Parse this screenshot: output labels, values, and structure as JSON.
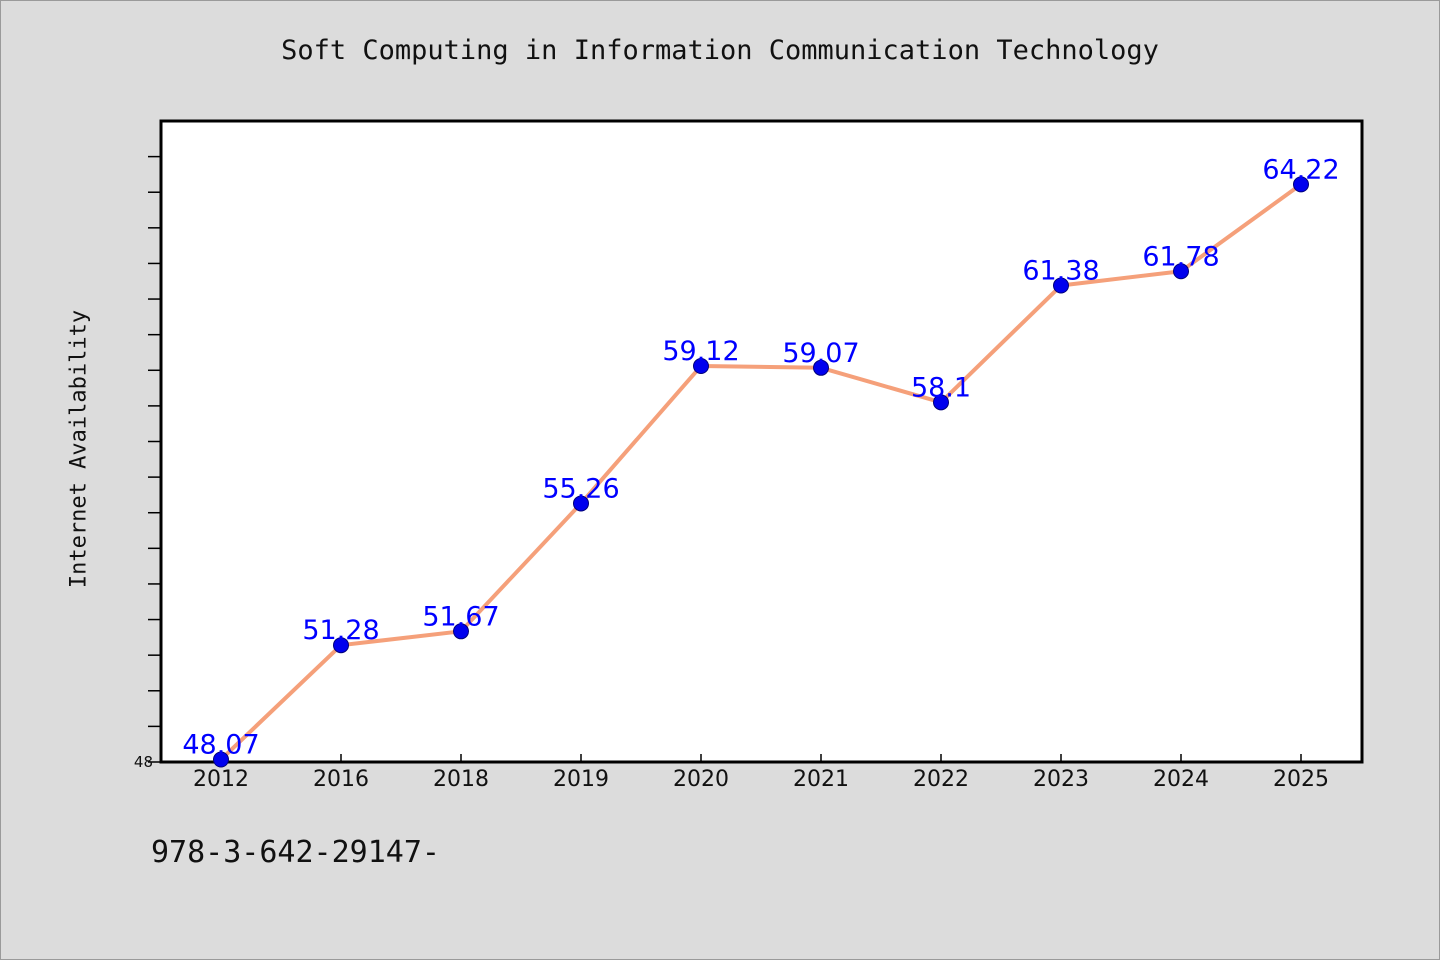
{
  "chart_data": {
    "type": "line",
    "title": "Soft Computing in Information Communication Technology",
    "xlabel": "",
    "ylabel": "Internet Availability",
    "categories": [
      "2012",
      "2016",
      "2018",
      "2019",
      "2020",
      "2021",
      "2022",
      "2023",
      "2024",
      "2025"
    ],
    "series": [
      {
        "values": [
          48.07,
          51.28,
          51.67,
          55.26,
          59.12,
          59.07,
          58.1,
          61.38,
          61.78,
          64.22
        ]
      }
    ],
    "data_labels": [
      "48.07",
      "51.28",
      "51.67",
      "55.26",
      "59.12",
      "59.07",
      "58.1",
      "61.38",
      "61.78",
      "64.22"
    ],
    "ylim": [
      48,
      66
    ],
    "yticks_labeled": [
      "48"
    ],
    "grid": false,
    "legend": "none",
    "colors": {
      "line": "#f5a07a",
      "marker": "#0000ee",
      "label": "#0000ff",
      "background": "#dcdcdc",
      "plot_background": "#ffffff"
    }
  },
  "footer": {
    "text": "978-3-642-29147-"
  }
}
